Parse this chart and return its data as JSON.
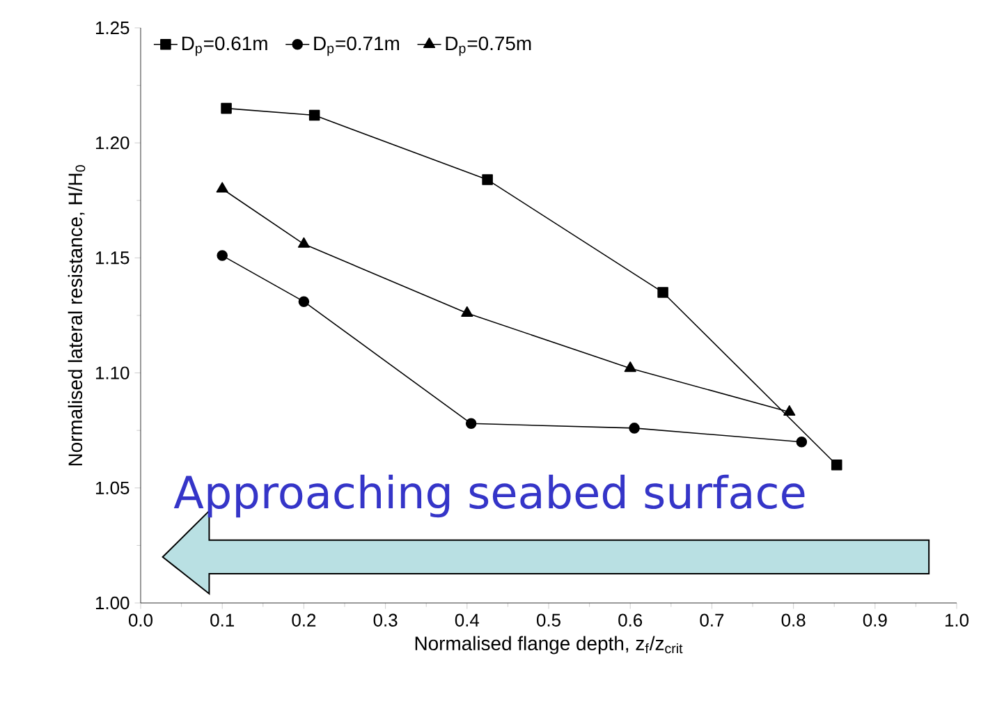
{
  "chart_data": {
    "type": "line",
    "xlabel": "Normalised flange depth, z$_{f}$/z$_{crit}$",
    "ylabel": "Normalised lateral resistance, H/H$_{0}$",
    "annotations": [
      "Approaching seabed surface"
    ],
    "series": [
      {
        "name": "D$_{p}$=0.61m",
        "color": "#000000",
        "marker": "square",
        "x": [
          0.105,
          0.213,
          0.425,
          0.64,
          0.853
        ],
        "values": [
          1.215,
          1.212,
          1.184,
          1.135,
          1.06
        ]
      },
      {
        "name": "D$_{p}$=0.71m",
        "color": "#000000",
        "marker": "circle",
        "x": [
          0.1,
          0.2,
          0.405,
          0.605,
          0.81
        ],
        "values": [
          1.151,
          1.131,
          1.078,
          1.076,
          1.07
        ]
      },
      {
        "name": "D$_{p}$=0.75m",
        "color": "#000000",
        "marker": "triangle",
        "x": [
          0.1,
          0.2,
          0.4,
          0.6,
          0.795
        ],
        "values": [
          1.18,
          1.156,
          1.126,
          1.102,
          1.083
        ]
      }
    ],
    "xlim": [
      0.0,
      1.0
    ],
    "xticks": [
      {
        "value": 0.0,
        "label": "0.0"
      },
      0.1,
      0.2,
      0.3,
      0.4,
      0.5,
      0.6,
      0.7,
      0.8,
      0.9,
      {
        "value": 1.0,
        "label": "1.0"
      }
    ],
    "ylim": [
      1.0,
      1.25
    ],
    "yticks": [
      {
        "value": 1.0,
        "label": "1.00"
      },
      {
        "value": 1.05,
        "label": "1.05"
      },
      {
        "value": 1.1,
        "label": "1.10"
      },
      {
        "value": 1.15,
        "label": "1.15"
      },
      {
        "value": 1.2,
        "label": "1.20"
      },
      {
        "value": 1.25,
        "label": "1.25"
      }
    ],
    "grid": false,
    "legend": "top left",
    "line_style": "solid"
  }
}
